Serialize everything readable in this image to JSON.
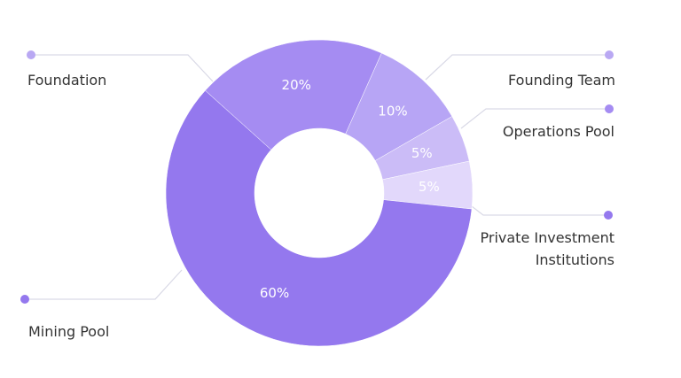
{
  "chart_data": {
    "type": "donut",
    "categories": [
      "Foundation",
      "Founding Team",
      "Operations Pool",
      "Private Investment Institutions",
      "Mining Pool"
    ],
    "values": [
      20,
      10,
      5,
      5,
      60
    ],
    "value_labels": [
      "20%",
      "10%",
      "5%",
      "5%",
      "60%"
    ],
    "colors": [
      "#a58cf2",
      "#b7a5f5",
      "#cbbcf7",
      "#e2d8fb",
      "#9478ee"
    ]
  }
}
